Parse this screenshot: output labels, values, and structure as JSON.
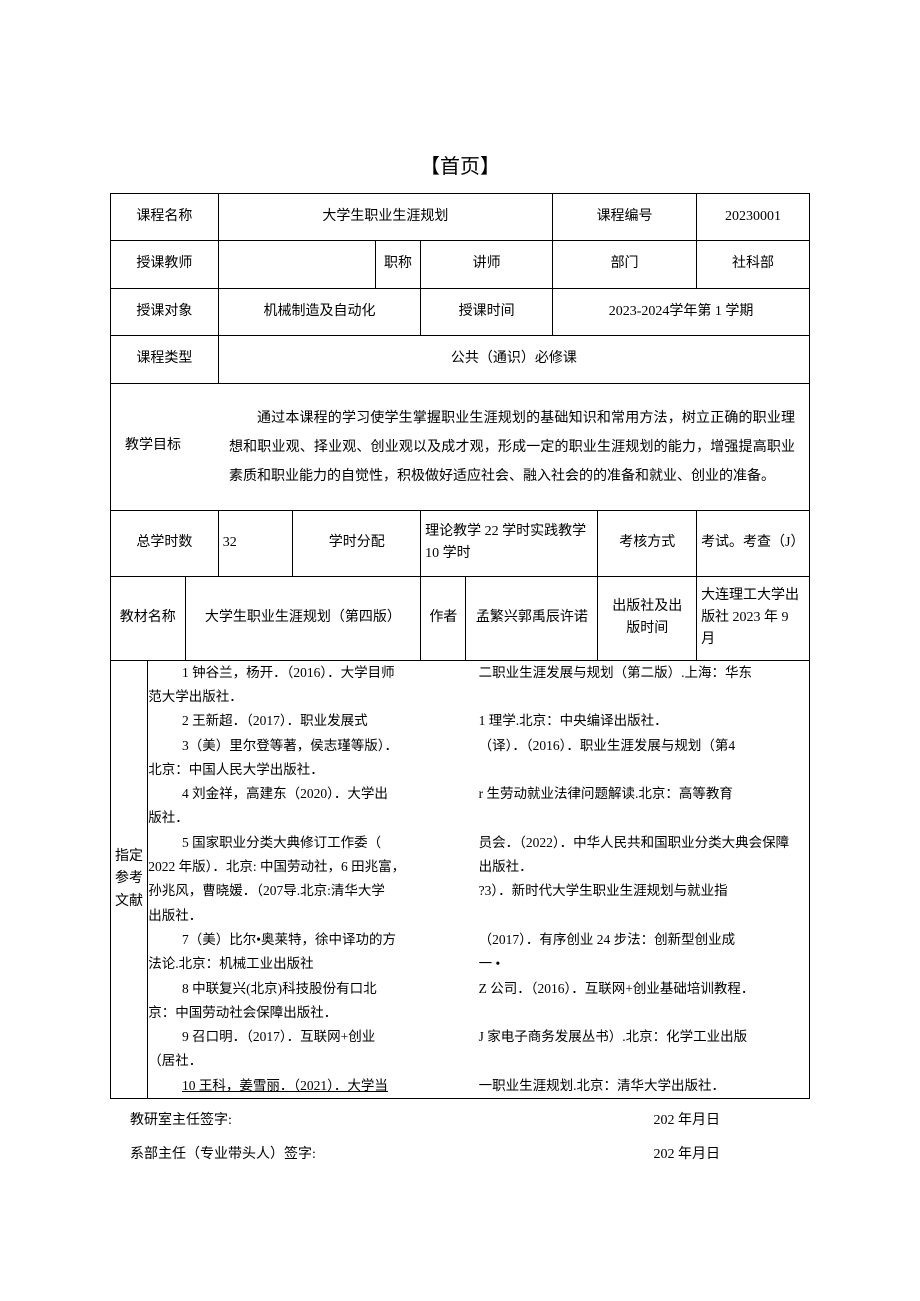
{
  "colors": {
    "text": "#000000",
    "border": "#000000",
    "background": "#ffffff"
  },
  "typography": {
    "body_fontsize_pt": 10.5,
    "title_fontsize_pt": 15,
    "line_height": 2.0,
    "font_family": "SimSun"
  },
  "title": "【首页】",
  "rows": {
    "course_name_label": "课程名称",
    "course_name": "大学生职业生涯规划",
    "course_code_label": "课程编号",
    "course_code": "20230001",
    "teacher_label": "授课教师",
    "teacher": "",
    "title_rank_label": "职称",
    "title_rank": "讲师",
    "dept_label": "部门",
    "dept": "社科部",
    "audience_label": "授课对象",
    "audience": "机械制造及自动化",
    "time_label": "授课时间",
    "time": "2023-2024学年第 1 学期",
    "type_label": "课程类型",
    "type": "公共（通识）必修课"
  },
  "goal": {
    "label": "教学目标",
    "text": "通过本课程的学习使学生掌握职业生涯规划的基础知识和常用方法，树立正确的职业理想和职业观、择业观、创业观以及成才观，形成一定的职业生涯规划的能力，增强提高职业素质和职业能力的自觉性，积极做好适应社会、融入社会的的准备和就业、创业的准备。"
  },
  "hours": {
    "total_label": "总学时数",
    "total": "32",
    "alloc_label": "学时分配",
    "alloc": "理论教学 22 学时实践教学 10 学时",
    "assess_label": "考核方式",
    "assess": "考试。考查（J）"
  },
  "textbook": {
    "name_label": "教材名称",
    "name": "大学生职业生涯规划（第四版）",
    "author_label": "作者",
    "author": "孟繁兴郭禹辰许诺",
    "pub_label": "出版社及出版时间",
    "pub": "大连理工大学出版社 2023 年 9 月"
  },
  "refs": {
    "label": "指定参考文献",
    "left": [
      {
        "indent": true,
        "text": "1 钟谷兰，杨开．（2016）．大学目师"
      },
      {
        "indent": false,
        "text": "范大学出版社．"
      },
      {
        "indent": true,
        "text": "2 王新超．（2017）．职业发展式"
      },
      {
        "indent": true,
        "text": "3（美）里尔登等著，侯志瑾等版）．"
      },
      {
        "indent": false,
        "text": "北京：中国人民大学出版社．"
      },
      {
        "indent": true,
        "text": "4 刘金祥，高建东（2020）．大学出"
      },
      {
        "indent": false,
        "text": "版社．"
      },
      {
        "indent": true,
        "text": "5 国家职业分类大典修订工作委（"
      },
      {
        "indent": false,
        "text": "2022 年版）．北京: 中国劳动社，6 田兆富，"
      },
      {
        "indent": false,
        "text": "孙兆风，曹晓媛．（207导.北京:清华大学"
      },
      {
        "indent": false,
        "text": "出版社．"
      },
      {
        "indent": true,
        "text": "7（美）比尔•奥莱特，徐中译功的方"
      },
      {
        "indent": false,
        "text": "法论.北京：机械工业出版社"
      },
      {
        "indent": true,
        "text": "8 中联复兴(北京)科技股份有口北"
      },
      {
        "indent": false,
        "text": "京：中国劳动社会保障出版社．"
      },
      {
        "indent": true,
        "text": "9 召口明．（2017）．互联网+创业"
      },
      {
        "indent": false,
        "text": "（居社．"
      },
      {
        "indent": true,
        "underline": true,
        "text": "10 王科，姜雪丽．（2021）．大学当"
      }
    ],
    "right": [
      {
        "text": "二职业生涯发展与规划（第二版）.上海：华东"
      },
      {
        "text": ""
      },
      {
        "text": "1 理学.北京：中央编译出版社．"
      },
      {
        "text": "（译）．（2016）．职业生涯发展与规划（第4"
      },
      {
        "text": ""
      },
      {
        "text": "r 生劳动就业法律问题解读.北京：高等教育"
      },
      {
        "text": ""
      },
      {
        "text": "员会．（2022）．中华人民共和国职业分类大典会保障"
      },
      {
        "text": "出版社．"
      },
      {
        "text": "?3）．新时代大学生职业生涯规划与就业指"
      },
      {
        "text": ""
      },
      {
        "text": "（2017）．有序创业 24 步法：创新型创业成"
      },
      {
        "text": "一 •"
      },
      {
        "text": "Z 公司．（2016）．互联网+创业基础培训教程．"
      },
      {
        "text": ""
      },
      {
        "text": "J 家电子商务发展丛书）.北京：化学工业出版"
      },
      {
        "text": ""
      },
      {
        "text": "一职业生涯规划.北京：清华大学出版社．"
      }
    ]
  },
  "signatures": {
    "line1_left": "教研室主任签字:",
    "line1_right": "202 年月日",
    "line2_left": "系部主任（专业带头人）签字:",
    "line2_right": "202 年月日"
  }
}
